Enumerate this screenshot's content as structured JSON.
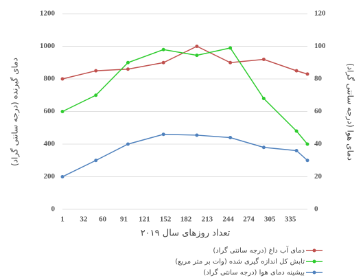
{
  "chart_data": {
    "type": "line",
    "x_label": "تعداد روزهای سال ۲۰۱۹",
    "y_label": "دمای گیرنده (درجه سانتی گراد)",
    "y2_label": "دمای هوا (درجه سانتی گراد)",
    "xlim": [
      1,
      360
    ],
    "xticks": [
      1,
      32,
      60,
      91,
      121,
      152,
      182,
      213,
      244,
      274,
      305,
      335
    ],
    "ylim": [
      0,
      1200
    ],
    "yticks": [
      0,
      200,
      400,
      600,
      800,
      1000,
      1200
    ],
    "y2lim": [
      0,
      120
    ],
    "y2ticks": [
      0,
      20,
      40,
      60,
      80,
      100,
      120
    ],
    "grid": true,
    "series": [
      {
        "name": "دمای آب داغ (درجه سانتی گراد)",
        "color": "#c0504d",
        "x": [
          1,
          50,
          97,
          149,
          198,
          247,
          296,
          344,
          360
        ],
        "values": [
          800,
          850,
          860,
          900,
          1000,
          900,
          920,
          850,
          830
        ]
      },
      {
        "name": "تابش کل اندازه گیری شده (وات بر متر مربع)",
        "color": "#2ecc2e",
        "x": [
          1,
          50,
          97,
          149,
          198,
          247,
          296,
          344,
          360
        ],
        "values": [
          600,
          700,
          900,
          980,
          945,
          990,
          680,
          480,
          400
        ]
      },
      {
        "name": "بیشینه دمای هوا (درجه سانتی گراد)",
        "color": "#4f81bd",
        "axis": "y2",
        "x": [
          1,
          50,
          97,
          149,
          198,
          247,
          296,
          344,
          360
        ],
        "values": [
          20,
          30,
          40,
          46,
          45.5,
          44,
          38,
          36,
          30
        ]
      }
    ]
  }
}
